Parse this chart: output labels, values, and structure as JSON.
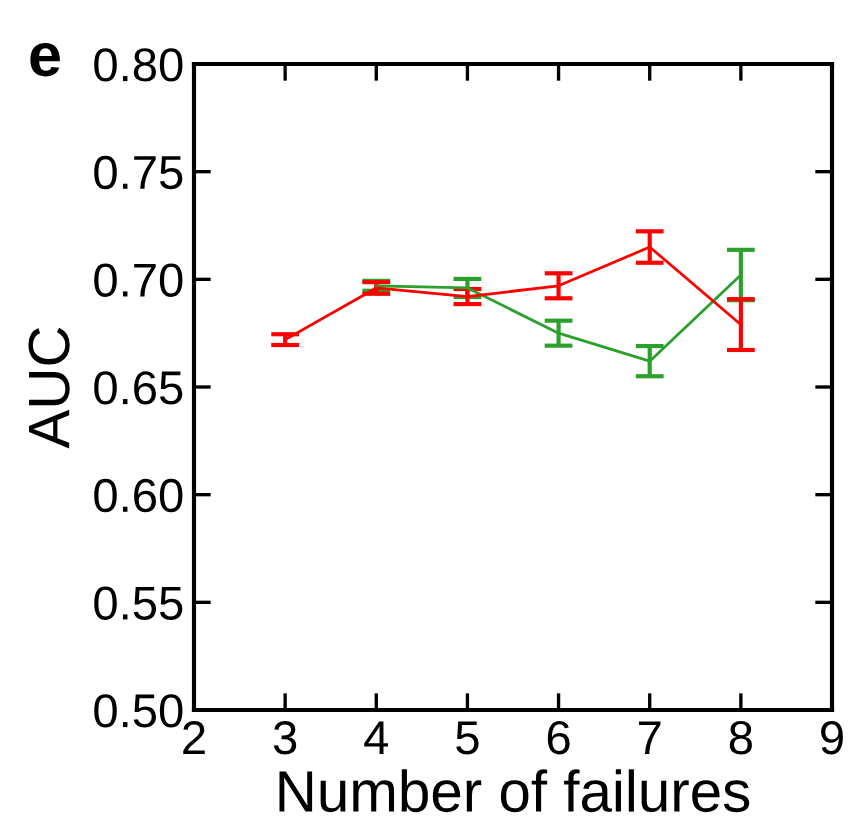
{
  "chart_data": {
    "type": "line",
    "xlabel": "Number of failures",
    "ylabel": "AUC",
    "annotations": [
      "e"
    ],
    "x": [
      3,
      4,
      5,
      6,
      7,
      8
    ],
    "series": [
      {
        "color": "#2ca02c",
        "values": [
          null,
          0.697,
          0.696,
          0.675,
          0.662,
          0.702
        ],
        "errors": [
          null,
          0.0023,
          0.0042,
          0.0058,
          0.007,
          0.0117
        ]
      },
      {
        "color": "#ff0000",
        "values": [
          0.672,
          0.696,
          0.692,
          0.697,
          0.715,
          0.679
        ],
        "errors": [
          0.0025,
          0.0027,
          0.0035,
          0.0058,
          0.0073,
          0.0118
        ]
      }
    ],
    "xlim": [
      2,
      9
    ],
    "xticks": [
      2,
      3,
      4,
      5,
      6,
      7,
      8,
      9
    ],
    "ylim": [
      0.5,
      0.8
    ],
    "yticks": [
      {
        "value": 0.5,
        "label": "0.50"
      },
      {
        "value": 0.55,
        "label": "0.55"
      },
      {
        "value": 0.6,
        "label": "0.60"
      },
      {
        "value": 0.65,
        "label": "0.65"
      },
      {
        "value": 0.7,
        "label": "0.70"
      },
      {
        "value": 0.75,
        "label": "0.75"
      },
      {
        "value": 0.8,
        "label": "0.80"
      }
    ],
    "grid": false,
    "marker": "none",
    "line_style": "solid"
  }
}
